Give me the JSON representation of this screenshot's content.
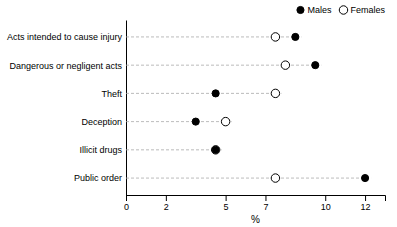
{
  "chart_data": {
    "type": "dot",
    "orientation": "horizontal",
    "categories": [
      "Acts intended to cause injury",
      "Dangerous or negligent acts",
      "Theft",
      "Deception",
      "Illicit drugs",
      "Public order"
    ],
    "series": [
      {
        "name": "Males",
        "color": "black",
        "marker": "circle",
        "values": [
          8.5,
          9.5,
          4.5,
          3.5,
          4.5,
          12.0
        ]
      },
      {
        "name": "Females",
        "color": "white",
        "marker": "circle",
        "values": [
          7.5,
          8.0,
          7.5,
          5.0,
          4.5,
          7.5
        ]
      }
    ],
    "xlabel": "%",
    "xlim": [
      0,
      13
    ],
    "xticks": [
      0,
      2,
      5,
      7,
      10,
      12
    ],
    "legend": "upper right"
  }
}
